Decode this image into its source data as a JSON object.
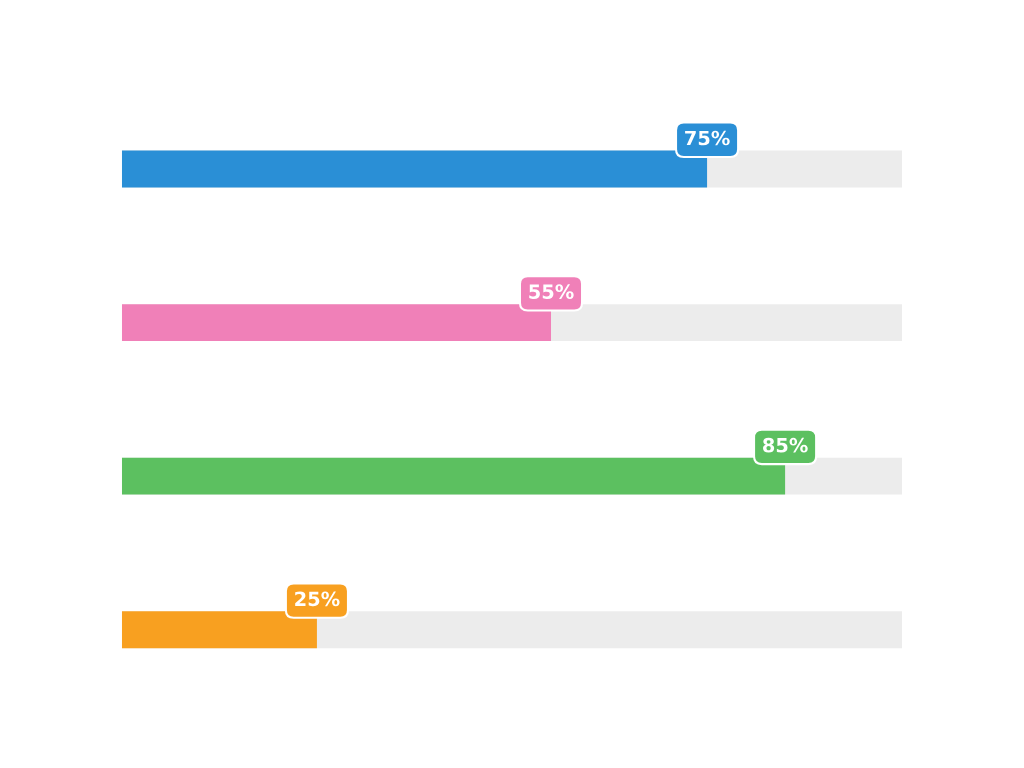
{
  "chart_data": {
    "type": "bar",
    "orientation": "horizontal",
    "relative": false,
    "xlim": [
      0,
      100
    ],
    "tick_labels": false,
    "grid": false,
    "legend": false,
    "categories": [
      null,
      null,
      null,
      null
    ],
    "series": [
      {
        "colors": [
          "#2a8fd6",
          "#f080b8",
          "#5cc060",
          "#f8a020"
        ],
        "values": [
          75,
          55,
          85,
          25
        ],
        "value_labels": [
          "75%",
          "55%",
          "85%",
          "25%"
        ]
      }
    ]
  }
}
